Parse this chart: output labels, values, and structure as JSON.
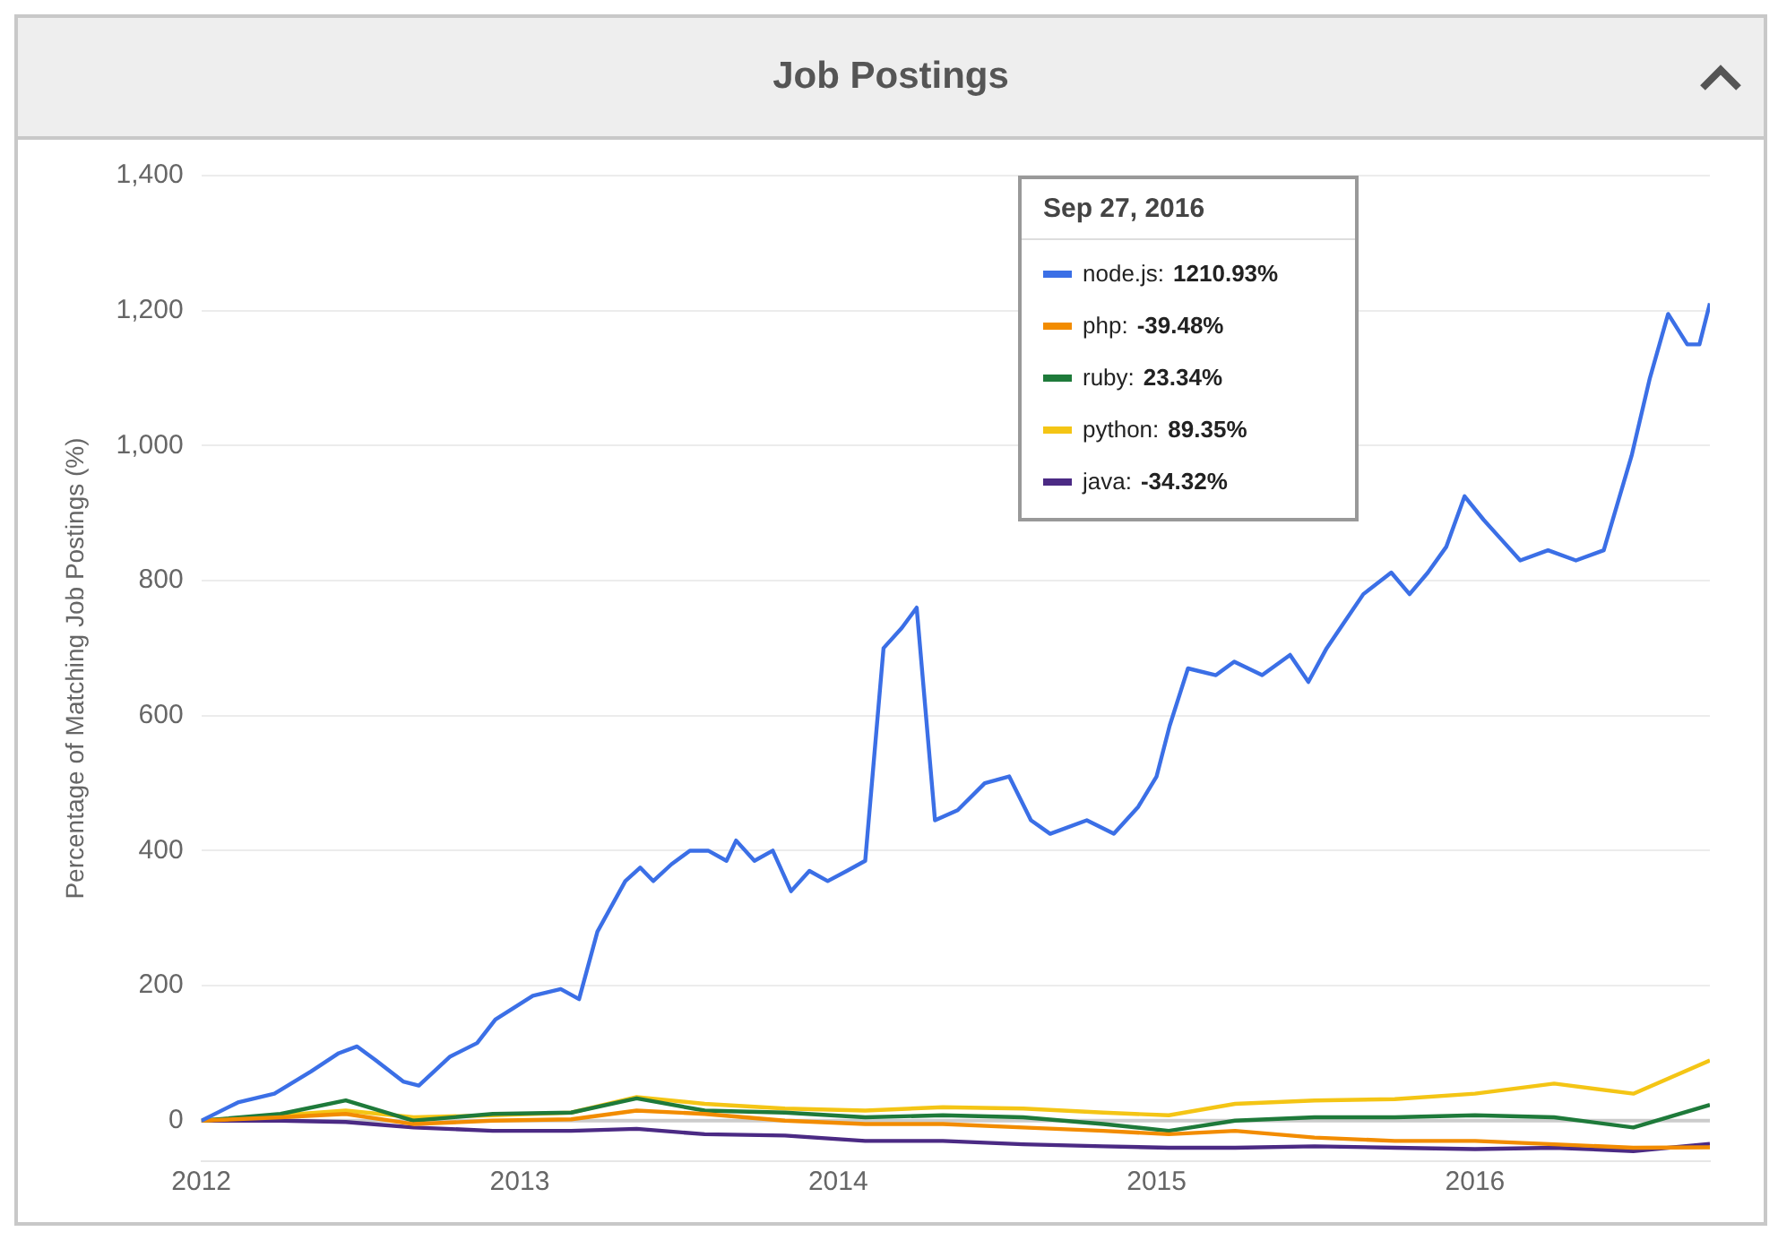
{
  "chart_data": {
    "type": "line",
    "title": "Job Postings",
    "ylabel": "Percentage of Matching Job Postings (%)",
    "xlim": [
      "2012-01-01",
      "2016-09-27"
    ],
    "xticks": [
      {
        "value": "2012-01-01",
        "label": "2012"
      },
      {
        "value": "2013-01-01",
        "label": "2013"
      },
      {
        "value": "2014-01-01",
        "label": "2014"
      },
      {
        "value": "2015-01-01",
        "label": "2015"
      },
      {
        "value": "2016-01-01",
        "label": "2016"
      }
    ],
    "ylim": [
      -60,
      1400
    ],
    "yticks": [
      {
        "value": 0,
        "label": "0"
      },
      {
        "value": 200,
        "label": "200"
      },
      {
        "value": 400,
        "label": "400"
      },
      {
        "value": 600,
        "label": "600"
      },
      {
        "value": 800,
        "label": "800"
      },
      {
        "value": 1000,
        "label": "1,000"
      },
      {
        "value": 1200,
        "label": "1,200"
      },
      {
        "value": 1400,
        "label": "1,400"
      }
    ],
    "grid": "y",
    "legend": "top right",
    "marker": "none",
    "line_style": "solid",
    "ref_lines": [
      {
        "axis": "y",
        "value": 0,
        "color": "#cccccc"
      }
    ],
    "legend_title": "Sep 27, 2016",
    "x": [
      "2012-01-01",
      "2012-04-01",
      "2012-06-15",
      "2012-09-01",
      "2012-12-01",
      "2013-03-01",
      "2013-05-15",
      "2013-08-01",
      "2013-11-01",
      "2014-02-01",
      "2014-05-01",
      "2014-08-01",
      "2014-11-01",
      "2015-01-15",
      "2015-04-01",
      "2015-07-01",
      "2015-10-01",
      "2016-01-01",
      "2016-04-01",
      "2016-07-01",
      "2016-09-27"
    ],
    "series": [
      {
        "name": "node.js:",
        "color": "#3b6fe6",
        "x": [
          "2012-01-01",
          "2012-02-12",
          "2012-03-25",
          "2012-05-06",
          "2012-06-07",
          "2012-06-28",
          "2012-07-19",
          "2012-08-20",
          "2012-09-07",
          "2012-10-13",
          "2012-11-13",
          "2012-12-04",
          "2013-01-16",
          "2013-02-17",
          "2013-03-10",
          "2013-03-31",
          "2013-05-02",
          "2013-05-19",
          "2013-06-03",
          "2013-06-24",
          "2013-07-15",
          "2013-08-05",
          "2013-08-26",
          "2013-09-06",
          "2013-09-27",
          "2013-10-18",
          "2013-11-08",
          "2013-11-29",
          "2013-12-20",
          "2014-01-11",
          "2014-02-01",
          "2014-02-22",
          "2014-03-15",
          "2014-04-01",
          "2014-04-22",
          "2014-05-18",
          "2014-06-18",
          "2014-07-16",
          "2014-08-10",
          "2014-09-01",
          "2014-10-13",
          "2014-11-13",
          "2014-12-11",
          "2015-01-01",
          "2015-01-16",
          "2015-02-06",
          "2015-03-10",
          "2015-03-31",
          "2015-05-02",
          "2015-06-03",
          "2015-06-24",
          "2015-07-15",
          "2015-08-05",
          "2015-08-26",
          "2015-09-27",
          "2015-10-18",
          "2015-11-08",
          "2015-11-29",
          "2015-12-20",
          "2016-01-11",
          "2016-02-01",
          "2016-02-22",
          "2016-03-25",
          "2016-04-26",
          "2016-05-28",
          "2016-06-29",
          "2016-07-20",
          "2016-08-10",
          "2016-09-01",
          "2016-09-15",
          "2016-09-27"
        ],
        "values": [
          0,
          27,
          40,
          73,
          100,
          110,
          90,
          58,
          52,
          95,
          115,
          150,
          185,
          195,
          180,
          280,
          355,
          375,
          355,
          380,
          400,
          400,
          385,
          415,
          385,
          400,
          340,
          370,
          355,
          370,
          385,
          700,
          730,
          760,
          445,
          460,
          500,
          510,
          445,
          425,
          445,
          425,
          465,
          510,
          585,
          670,
          660,
          680,
          660,
          690,
          650,
          700,
          740,
          780,
          812,
          780,
          812,
          850,
          925,
          890,
          860,
          830,
          845,
          830,
          845,
          985,
          1100,
          1195,
          1150,
          1150,
          1210.93
        ]
      },
      {
        "name": "php:",
        "color": "#f28c00",
        "values": [
          0,
          5,
          10,
          -5,
          0,
          2,
          15,
          10,
          0,
          -5,
          -5,
          -10,
          -15,
          -20,
          -15,
          -25,
          -30,
          -30,
          -35,
          -40,
          -39.48
        ]
      },
      {
        "name": "ruby:",
        "color": "#1e7a3a",
        "values": [
          0,
          10,
          30,
          0,
          10,
          12,
          33,
          15,
          12,
          5,
          8,
          5,
          -5,
          -15,
          0,
          5,
          5,
          8,
          5,
          -10,
          23.34
        ]
      },
      {
        "name": "python:",
        "color": "#f4c515",
        "values": [
          0,
          8,
          15,
          5,
          8,
          12,
          35,
          25,
          18,
          15,
          20,
          18,
          12,
          8,
          25,
          30,
          32,
          40,
          55,
          40,
          89.35
        ]
      },
      {
        "name": "java:",
        "color": "#4b2a84",
        "values": [
          0,
          0,
          -2,
          -10,
          -15,
          -15,
          -12,
          -20,
          -22,
          -30,
          -30,
          -35,
          -38,
          -40,
          -40,
          -38,
          -40,
          -42,
          -40,
          -45,
          -34.32
        ]
      }
    ],
    "annotations": [
      "1210.93%",
      "-39.48%",
      "23.34%",
      "89.35%",
      "-34.32%"
    ]
  }
}
